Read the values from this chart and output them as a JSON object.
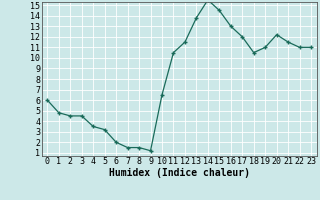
{
  "x": [
    0,
    1,
    2,
    3,
    4,
    5,
    6,
    7,
    8,
    9,
    10,
    11,
    12,
    13,
    14,
    15,
    16,
    17,
    18,
    19,
    20,
    21,
    22,
    23
  ],
  "y": [
    6.0,
    4.8,
    4.5,
    4.5,
    3.5,
    3.2,
    2.0,
    1.5,
    1.5,
    1.2,
    6.5,
    10.5,
    11.5,
    13.8,
    15.5,
    14.5,
    13.0,
    12.0,
    10.5,
    11.0,
    12.2,
    11.5,
    11.0,
    11.0
  ],
  "xlabel": "Humidex (Indice chaleur)",
  "ylim": [
    1,
    15
  ],
  "xlim": [
    0,
    23
  ],
  "yticks": [
    1,
    2,
    3,
    4,
    5,
    6,
    7,
    8,
    9,
    10,
    11,
    12,
    13,
    14,
    15
  ],
  "xticks": [
    0,
    1,
    2,
    3,
    4,
    5,
    6,
    7,
    8,
    9,
    10,
    11,
    12,
    13,
    14,
    15,
    16,
    17,
    18,
    19,
    20,
    21,
    22,
    23
  ],
  "line_color": "#1a6b5a",
  "marker": "+",
  "bg_color": "#cce8e8",
  "grid_color": "#ffffff",
  "xlabel_fontsize": 7,
  "tick_fontsize": 6,
  "spine_color": "#555555"
}
